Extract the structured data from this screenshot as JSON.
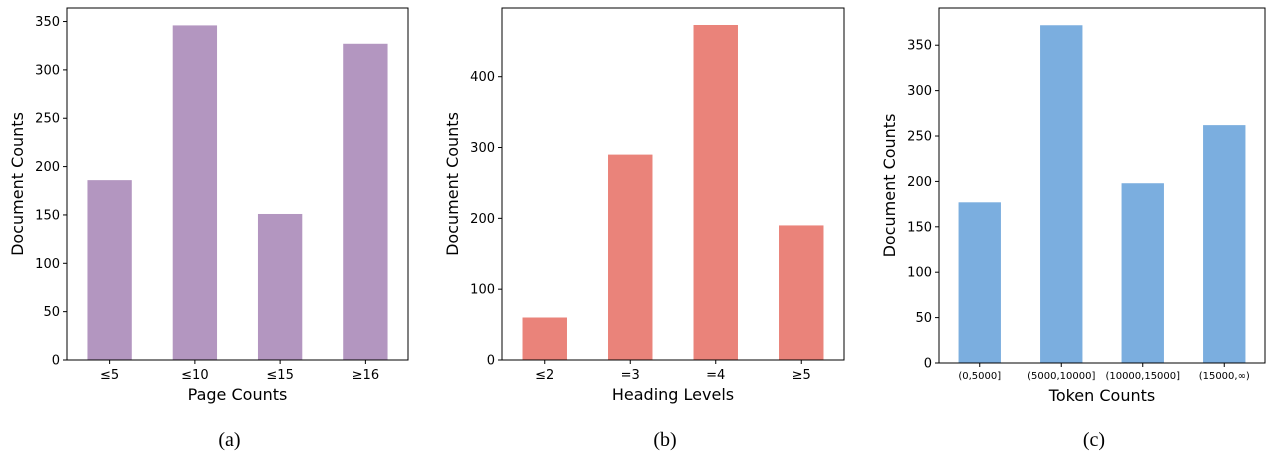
{
  "chart_data": [
    {
      "type": "bar",
      "caption": "(a)",
      "categories": [
        "≤5",
        "≤10",
        "≤15",
        "≥16"
      ],
      "values": [
        186,
        346,
        151,
        327
      ],
      "xlabel": "Page Counts",
      "ylabel": "Document Counts",
      "ylim": [
        0,
        364
      ],
      "yticks": [
        0,
        50,
        100,
        150,
        200,
        250,
        300,
        350
      ],
      "color": "#b396c0",
      "grid": false
    },
    {
      "type": "bar",
      "caption": "(b)",
      "categories": [
        "≤2",
        "=3",
        "=4",
        "≥5"
      ],
      "values": [
        60,
        290,
        473,
        190
      ],
      "xlabel": "Heading Levels",
      "ylabel": "Document Counts",
      "ylim": [
        0,
        497
      ],
      "yticks": [
        0,
        100,
        200,
        300,
        400
      ],
      "color": "#ea837a",
      "grid": false
    },
    {
      "type": "bar",
      "caption": "(c)",
      "categories": [
        "(0,5000]",
        "(5000,10000]",
        "(10000,15000]",
        "(15000,∞)"
      ],
      "values": [
        177,
        372,
        198,
        262
      ],
      "xlabel": "Token Counts",
      "ylabel": "Document Counts",
      "ylim": [
        0,
        391
      ],
      "yticks": [
        0,
        50,
        100,
        150,
        200,
        250,
        300,
        350
      ],
      "color": "#7baedf",
      "grid": false
    }
  ]
}
